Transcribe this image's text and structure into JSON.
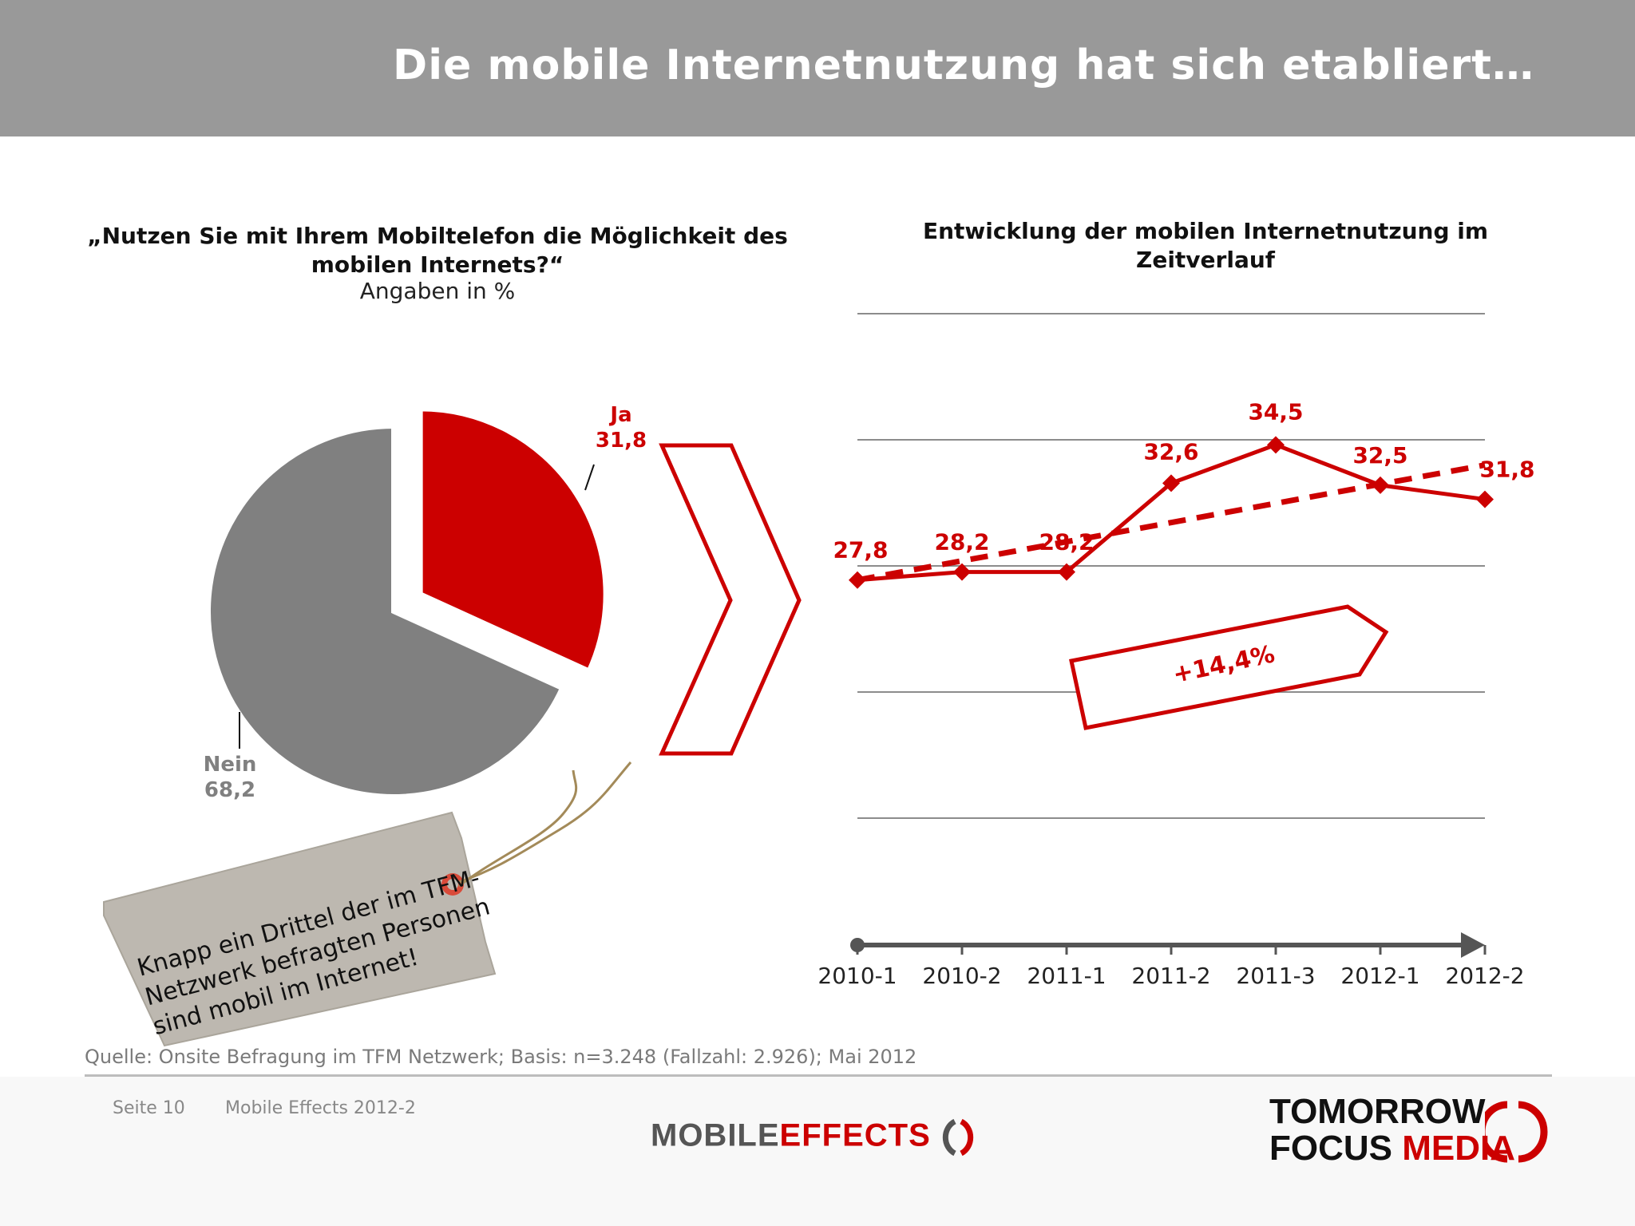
{
  "header": {
    "title": "Die mobile Internetnutzung hat sich etabliert…"
  },
  "pie": {
    "title": "„Nutzen Sie mit Ihrem Mobiltelefon die Möglichkeit des mobilen Internets?“",
    "subtitle": "Angaben in %"
  },
  "line": {
    "title": "Entwicklung der mobilen Internetnutzung im Zeitverlauf",
    "callout": "+14,4%"
  },
  "tag": {
    "text": "Knapp ein Drittel der im TFM-Netzwerk befragten Personen sind mobil im Internet!"
  },
  "colors": {
    "accent": "#cc0000",
    "grey_slice": "#808080",
    "header_bg": "#999999"
  },
  "chart_data": [
    {
      "type": "pie",
      "title": "„Nutzen Sie mit Ihrem Mobiltelefon die Möglichkeit des mobilen Internets?“",
      "subtitle": "Angaben in %",
      "slices": [
        {
          "label": "Ja",
          "value": 31.8,
          "display": "31,8",
          "color": "#cc0000"
        },
        {
          "label": "Nein",
          "value": 68.2,
          "display": "68,2",
          "color": "#808080"
        }
      ]
    },
    {
      "type": "line",
      "title": "Entwicklung der mobilen Internetnutzung im Zeitverlauf",
      "categories": [
        "2010-1",
        "2010-2",
        "2011-1",
        "2011-2",
        "2011-3",
        "2012-1",
        "2012-2"
      ],
      "series": [
        {
          "values": [
            27.8,
            28.2,
            28.2,
            32.6,
            34.5,
            32.5,
            31.8
          ],
          "labels": [
            "27,8",
            "28,2",
            "28,2",
            "32,6",
            "34,5",
            "32,5",
            "31,8"
          ],
          "color": "#cc0000"
        }
      ],
      "trendline": {
        "from": 27.8,
        "to": 33.5,
        "style": "dashed"
      },
      "annotation": "+14,4%",
      "ylim": [
        16,
        41
      ],
      "grid": true
    }
  ],
  "source": "Quelle: Onsite Befragung im TFM Netzwerk; Basis: n=3.248 (Fallzahl: 2.926); Mai 2012",
  "footer": {
    "page": "Seite 10",
    "doc": "Mobile Effects 2012-2",
    "logo_mobile": "MOBILE",
    "logo_effects": "EFFECTS",
    "logo_tomorrow": "TOMORROW",
    "logo_focus": "FOCUS",
    "logo_media": "MEDIA"
  }
}
